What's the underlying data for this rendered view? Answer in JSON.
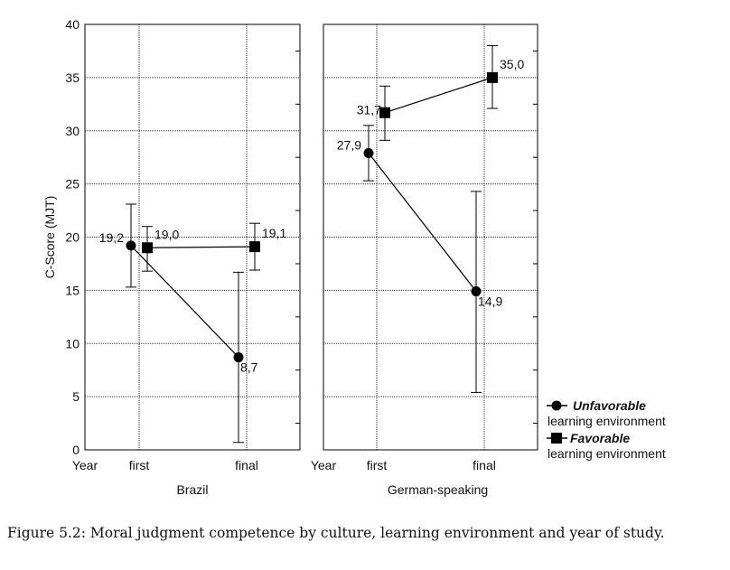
{
  "chart_data": {
    "type": "line",
    "ylabel": "C-Score (MJT)",
    "ylim": [
      0,
      40
    ],
    "yticks": [
      0,
      5,
      10,
      15,
      20,
      25,
      30,
      35,
      40
    ],
    "x_axis_prefix": "Year",
    "categories": [
      "first",
      "final"
    ],
    "grid": true,
    "legend_position": "bottom-right",
    "panels": [
      {
        "name": "Brazil",
        "series": [
          {
            "name": "Unfavorable",
            "marker": "circle",
            "values": [
              19.2,
              8.7
            ],
            "labels": [
              "19,2",
              "8,7"
            ],
            "err_low": [
              15.3,
              0.7
            ],
            "err_high": [
              23.1,
              16.7
            ]
          },
          {
            "name": "Favorable",
            "marker": "square",
            "values": [
              19.0,
              19.1
            ],
            "labels": [
              "19,0",
              "19,1"
            ],
            "err_low": [
              16.8,
              16.9
            ],
            "err_high": [
              21.0,
              21.3
            ]
          }
        ]
      },
      {
        "name": "German-speaking",
        "series": [
          {
            "name": "Unfavorable",
            "marker": "circle",
            "values": [
              27.9,
              14.9
            ],
            "labels": [
              "27,9",
              "14,9"
            ],
            "err_low": [
              25.3,
              5.4
            ],
            "err_high": [
              30.5,
              24.3
            ]
          },
          {
            "name": "Favorable",
            "marker": "square",
            "values": [
              31.7,
              35.0
            ],
            "labels": [
              "31,7",
              "35,0"
            ],
            "err_low": [
              29.1,
              32.1
            ],
            "err_high": [
              34.2,
              38.0
            ]
          }
        ]
      }
    ],
    "legend": [
      {
        "title": "Unfavorable",
        "subtitle": "learning environment",
        "marker": "circle"
      },
      {
        "title": "Favorable",
        "subtitle": "learning environment",
        "marker": "square"
      }
    ]
  },
  "caption": "Figure 5.2: Moral judgment competence by culture, learning environment and year of study."
}
